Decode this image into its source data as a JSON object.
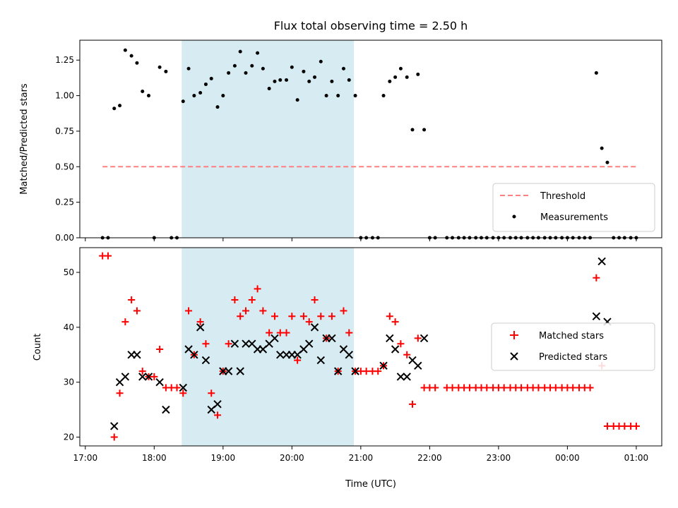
{
  "chart_data": [
    {
      "type": "scatter",
      "title": "Flux total observing time = 2.50 h",
      "xlabel": "",
      "ylabel": "Matched/Predicted stars",
      "xlim": [
        16.92,
        25.37
      ],
      "ylim": [
        0.0,
        1.39
      ],
      "yticks": [
        "0.00",
        "0.25",
        "0.50",
        "0.75",
        "1.00",
        "1.25"
      ],
      "ytick_values": [
        0.0,
        0.25,
        0.5,
        0.75,
        1.0,
        1.25
      ],
      "shaded_region": {
        "x": [
          18.4,
          20.9
        ],
        "color": "#add8e6"
      },
      "legend": {
        "placement": "lower-right",
        "entries": [
          "Threshold",
          "Measurements"
        ]
      },
      "threshold": {
        "name": "Threshold",
        "x": [
          17.25,
          25.0
        ],
        "y": 0.5,
        "color": "#ff8080"
      },
      "measurements": {
        "name": "Measurements",
        "x": [
          17.25,
          17.33,
          17.42,
          17.5,
          17.58,
          17.67,
          17.75,
          17.83,
          17.92,
          18.0,
          18.08,
          18.17,
          18.25,
          18.33,
          18.42,
          18.5,
          18.58,
          18.67,
          18.75,
          18.83,
          18.92,
          19.0,
          19.08,
          19.17,
          19.25,
          19.33,
          19.42,
          19.5,
          19.58,
          19.67,
          19.75,
          19.83,
          19.92,
          20.0,
          20.08,
          20.17,
          20.25,
          20.33,
          20.42,
          20.5,
          20.58,
          20.67,
          20.75,
          20.83,
          20.92,
          21.0,
          21.08,
          21.17,
          21.25,
          21.33,
          21.42,
          21.5,
          21.58,
          21.67,
          21.75,
          21.83,
          21.92,
          22.0,
          22.08,
          22.25,
          22.33,
          22.42,
          22.5,
          22.58,
          22.67,
          22.75,
          22.83,
          22.92,
          23.0,
          23.08,
          23.17,
          23.25,
          23.33,
          23.42,
          23.5,
          23.58,
          23.67,
          23.75,
          23.83,
          23.92,
          24.0,
          24.08,
          24.17,
          24.25,
          24.33,
          24.42,
          24.5,
          24.58,
          24.67,
          24.75,
          24.83,
          24.92,
          25.0
        ],
        "y": [
          0,
          0,
          0.91,
          0.93,
          1.32,
          1.28,
          1.23,
          1.03,
          1.0,
          0,
          1.2,
          1.17,
          0,
          0,
          0.96,
          1.19,
          1.0,
          1.02,
          1.08,
          1.12,
          0.92,
          1.0,
          1.16,
          1.21,
          1.31,
          1.16,
          1.21,
          1.3,
          1.19,
          1.05,
          1.1,
          1.11,
          1.11,
          1.2,
          0.97,
          1.17,
          1.1,
          1.13,
          1.24,
          1.0,
          1.1,
          1.0,
          1.19,
          1.11,
          1.0,
          0,
          0,
          0,
          0,
          1.0,
          1.1,
          1.13,
          1.19,
          1.13,
          0.76,
          1.15,
          0.76,
          0,
          0,
          0,
          0,
          0,
          0,
          0,
          0,
          0,
          0,
          0,
          0,
          0,
          0,
          0,
          0,
          0,
          0,
          0,
          0,
          0,
          0,
          0,
          0,
          0,
          0,
          0,
          0,
          1.16,
          0.63,
          0.53,
          0,
          0,
          0,
          0,
          0
        ]
      }
    },
    {
      "type": "scatter",
      "title": "",
      "xlabel": "Time (UTC)",
      "ylabel": "Count",
      "xlim": [
        16.92,
        25.37
      ],
      "ylim": [
        18.4,
        54.5
      ],
      "yticks": [
        "20",
        "30",
        "40",
        "50"
      ],
      "ytick_values": [
        20,
        30,
        40,
        50
      ],
      "xticks": [
        "17:00",
        "18:00",
        "19:00",
        "20:00",
        "21:00",
        "22:00",
        "23:00",
        "00:00",
        "01:00"
      ],
      "xtick_values": [
        17,
        18,
        19,
        20,
        21,
        22,
        23,
        24,
        25
      ],
      "shaded_region": {
        "x": [
          18.4,
          20.9
        ],
        "color": "#add8e6"
      },
      "legend": {
        "placement": "center-right",
        "entries": [
          "Matched stars",
          "Predicted stars"
        ]
      },
      "series": [
        {
          "name": "Matched stars",
          "marker": "+",
          "color": "#ff0000",
          "x": [
            17.25,
            17.33,
            17.42,
            17.5,
            17.58,
            17.67,
            17.75,
            17.83,
            17.92,
            18.0,
            18.08,
            18.17,
            18.25,
            18.33,
            18.42,
            18.5,
            18.58,
            18.67,
            18.75,
            18.83,
            18.92,
            19.0,
            19.08,
            19.17,
            19.25,
            19.33,
            19.42,
            19.5,
            19.58,
            19.67,
            19.75,
            19.83,
            19.92,
            20.0,
            20.08,
            20.17,
            20.25,
            20.33,
            20.42,
            20.5,
            20.58,
            20.67,
            20.75,
            20.83,
            20.92,
            21.0,
            21.08,
            21.17,
            21.25,
            21.33,
            21.42,
            21.5,
            21.58,
            21.67,
            21.75,
            21.83,
            21.92,
            22.0,
            22.08,
            22.25,
            22.33,
            22.42,
            22.5,
            22.58,
            22.67,
            22.75,
            22.83,
            22.92,
            23.0,
            23.08,
            23.17,
            23.25,
            23.33,
            23.42,
            23.5,
            23.58,
            23.67,
            23.75,
            23.83,
            23.92,
            24.0,
            24.08,
            24.17,
            24.25,
            24.33,
            24.42,
            24.5,
            24.58,
            24.67,
            24.75,
            24.83,
            24.92,
            25.0
          ],
          "y": [
            53,
            53,
            20,
            28,
            41,
            45,
            43,
            32,
            31,
            31,
            36,
            29,
            29,
            29,
            28,
            43,
            35,
            41,
            37,
            28,
            24,
            32,
            37,
            45,
            42,
            43,
            45,
            47,
            43,
            39,
            42,
            39,
            39,
            42,
            34,
            42,
            41,
            45,
            42,
            38,
            42,
            32,
            43,
            39,
            32,
            32,
            32,
            32,
            32,
            33,
            42,
            41,
            37,
            35,
            26,
            38,
            29,
            29,
            29,
            29,
            29,
            29,
            29,
            29,
            29,
            29,
            29,
            29,
            29,
            29,
            29,
            29,
            29,
            29,
            29,
            29,
            29,
            29,
            29,
            29,
            29,
            29,
            29,
            29,
            29,
            49,
            33,
            22,
            22,
            22,
            22,
            22,
            22
          ]
        },
        {
          "name": "Predicted stars",
          "marker": "x",
          "color": "#000000",
          "x": [
            17.42,
            17.5,
            17.58,
            17.67,
            17.75,
            17.83,
            17.92,
            18.08,
            18.17,
            18.42,
            18.5,
            18.58,
            18.67,
            18.75,
            18.83,
            18.92,
            19.0,
            19.08,
            19.17,
            19.25,
            19.33,
            19.42,
            19.5,
            19.58,
            19.67,
            19.75,
            19.83,
            19.92,
            20.0,
            20.08,
            20.17,
            20.25,
            20.33,
            20.42,
            20.5,
            20.58,
            20.67,
            20.75,
            20.83,
            20.92,
            21.33,
            21.42,
            21.5,
            21.58,
            21.67,
            21.75,
            21.83,
            21.92,
            24.42,
            24.5,
            24.58
          ],
          "y": [
            22,
            30,
            31,
            35,
            35,
            31,
            31,
            30,
            25,
            29,
            36,
            35,
            40,
            34,
            25,
            26,
            32,
            32,
            37,
            32,
            37,
            37,
            36,
            36,
            37,
            38,
            35,
            35,
            35,
            35,
            36,
            37,
            40,
            34,
            38,
            38,
            32,
            36,
            35,
            32,
            33,
            38,
            36,
            31,
            31,
            34,
            33,
            38,
            42,
            52,
            41
          ]
        }
      ]
    }
  ]
}
